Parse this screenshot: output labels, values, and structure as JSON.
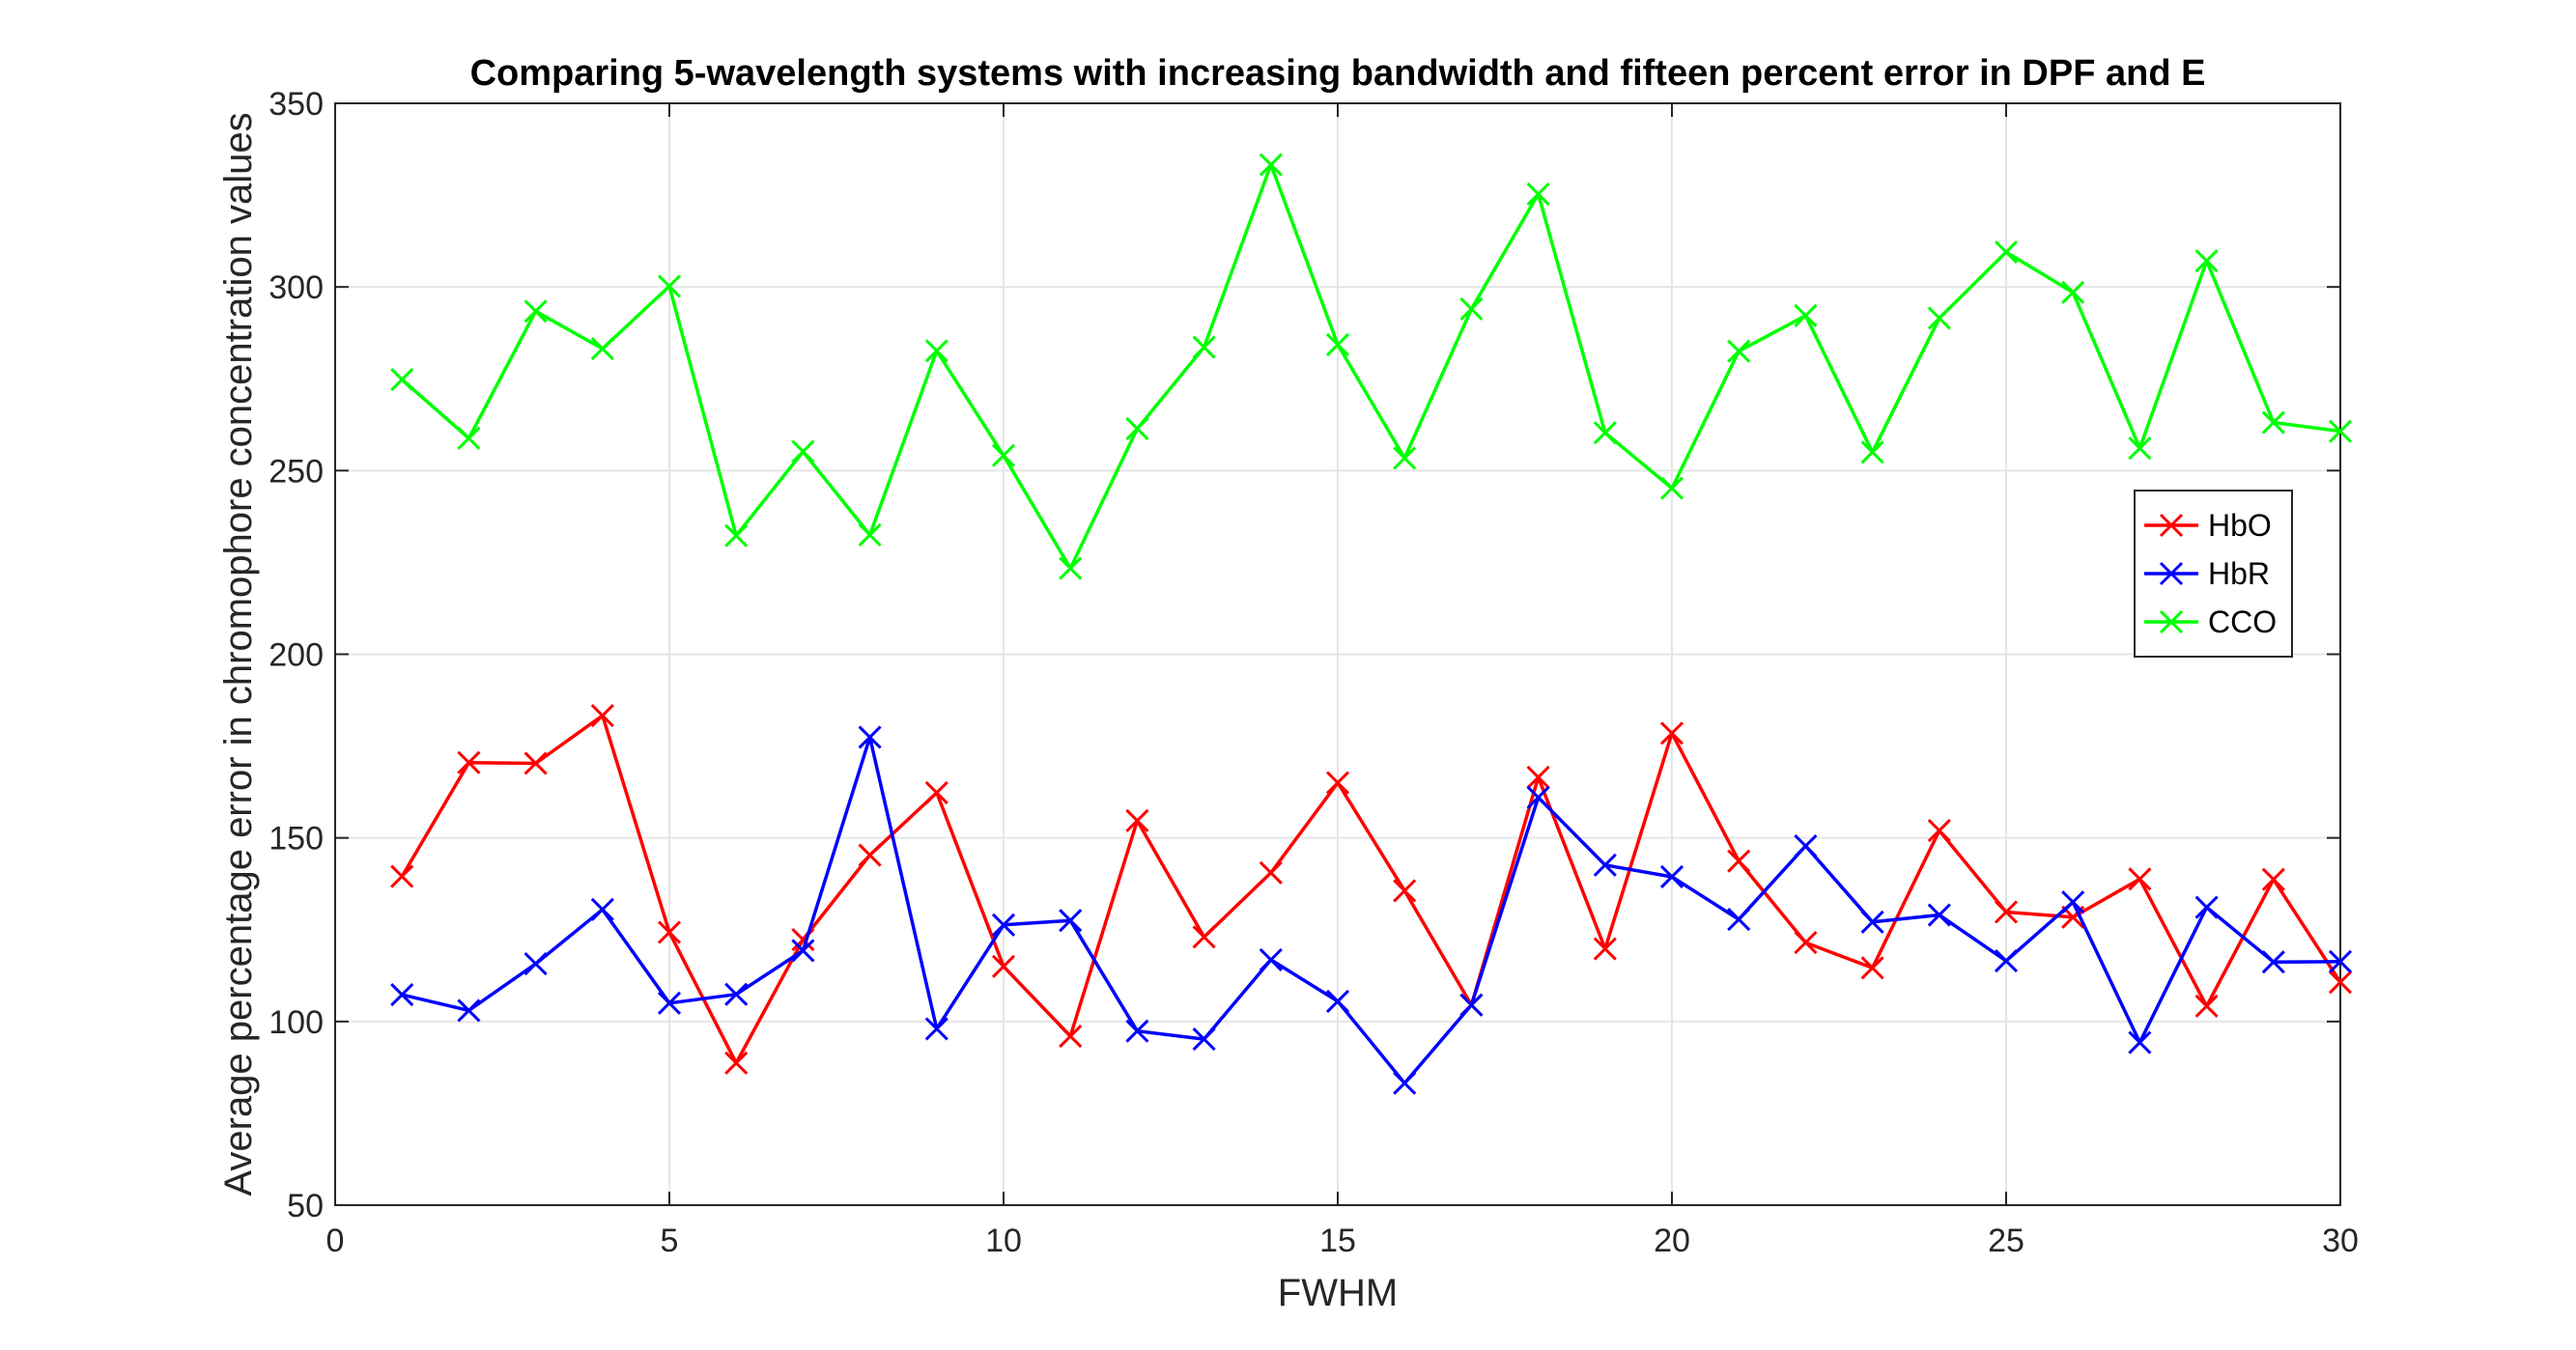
{
  "chart_data": {
    "type": "line",
    "title": "Comparing 5-wavelength systems with increasing bandwidth and fifteen percent error in DPF and E",
    "xlabel": "FWHM",
    "ylabel": "Average percentage error in chromophore concentration values",
    "xlim": [
      0,
      30
    ],
    "ylim": [
      50,
      350
    ],
    "xticks": [
      0,
      5,
      10,
      15,
      20,
      25,
      30
    ],
    "yticks": [
      50,
      100,
      150,
      200,
      250,
      300,
      350
    ],
    "grid": true,
    "legend_position": "right",
    "marker": "x",
    "x": [
      1,
      2,
      3,
      4,
      5,
      6,
      7,
      8,
      9,
      10,
      11,
      12,
      13,
      14,
      15,
      16,
      17,
      18,
      19,
      20,
      21,
      22,
      23,
      24,
      25,
      26,
      27,
      28,
      29,
      30
    ],
    "series": [
      {
        "name": "HbO",
        "color": "#ff0000",
        "values": [
          139.5,
          170.5,
          170.3,
          183.3,
          124.3,
          88.7,
          122.3,
          145.3,
          162.3,
          115.0,
          96.0,
          154.7,
          123.0,
          140.5,
          165.0,
          135.6,
          104.5,
          166.5,
          119.8,
          178.5,
          143.7,
          121.5,
          114.6,
          152.0,
          129.8,
          128.4,
          138.8,
          104.2,
          138.7,
          110.7
        ]
      },
      {
        "name": "HbR",
        "color": "#0000ff",
        "values": [
          107.3,
          103.0,
          115.7,
          130.5,
          105.0,
          107.4,
          119.3,
          177.4,
          98.0,
          126.3,
          127.5,
          97.4,
          95.2,
          116.8,
          105.5,
          83.2,
          104.5,
          161.0,
          142.6,
          139.4,
          127.8,
          147.8,
          127.1,
          129.0,
          116.5,
          132.5,
          94.3,
          131.1,
          116.2,
          116.3
        ]
      },
      {
        "name": "CCO",
        "color": "#00ff00",
        "values": [
          274.8,
          258.8,
          293.4,
          283.2,
          300.2,
          232.3,
          255.2,
          232.5,
          282.6,
          254.1,
          223.4,
          261.4,
          283.6,
          333.3,
          284.3,
          253.4,
          294.0,
          325.3,
          260.3,
          245.2,
          282.5,
          292.2,
          255.0,
          291.5,
          309.5,
          298.5,
          256.1,
          307.1,
          263.1,
          260.7
        ]
      }
    ]
  }
}
